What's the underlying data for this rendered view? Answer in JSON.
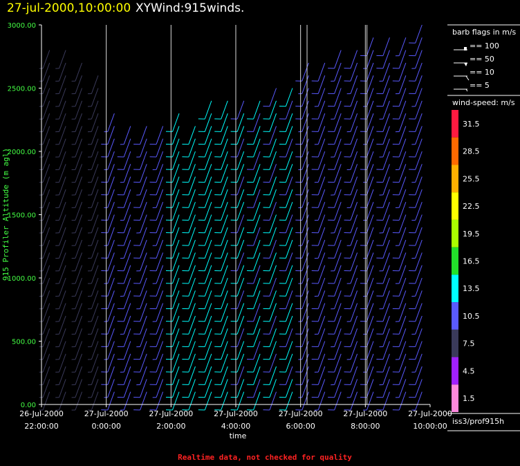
{
  "header": {
    "date_time": "27-jul-2000,10:00:00",
    "product": "XYWind:915winds."
  },
  "footer_note": "Realtime data, not checked for quality",
  "station_label": "iss3/prof915h",
  "colors": {
    "y_axis": "#44ff44",
    "footer": "#ff2222",
    "title_date": "#ffff00"
  },
  "barb_legend": {
    "title": "barb flags in m/s",
    "entries": [
      "== 100",
      "== 50",
      "== 10",
      "== 5"
    ]
  },
  "speed_legend": {
    "title": "wind-speed: m/s",
    "bins": [
      {
        "label": "31.5",
        "color": "#ff1a40"
      },
      {
        "label": "28.5",
        "color": "#ff6a00"
      },
      {
        "label": "25.5",
        "color": "#ffb000"
      },
      {
        "label": "22.5",
        "color": "#ffff00"
      },
      {
        "label": "19.5",
        "color": "#aaff00"
      },
      {
        "label": "16.5",
        "color": "#22e02a"
      },
      {
        "label": "13.5",
        "color": "#00ffff"
      },
      {
        "label": "10.5",
        "color": "#5a5aff"
      },
      {
        "label": "7.5",
        "color": "#3a3a5a"
      },
      {
        "label": "4.5",
        "color": "#a020ff"
      },
      {
        "label": "1.5",
        "color": "#ff88dd"
      }
    ]
  },
  "chart_data": {
    "type": "wind-barb time-height",
    "xlabel": "time",
    "ylabel": "915 Profiler Altitude (m agl)",
    "ylim": [
      0,
      3000
    ],
    "yticks": [
      "0.00",
      "500.00",
      "1000.00",
      "1500.00",
      "2000.00",
      "2500.00",
      "3000.00"
    ],
    "xticks": [
      {
        "date": "26-Jul-2000",
        "time": "22:00:00"
      },
      {
        "date": "27-Jul-2000",
        "time": "0:00:00"
      },
      {
        "date": "27-Jul-2000",
        "time": "2:00:00"
      },
      {
        "date": "27-Jul-2000",
        "time": "4:00:00"
      },
      {
        "date": "27-Jul-2000",
        "time": "6:00:00"
      },
      {
        "date": "27-Jul-2000",
        "time": "8:00:00"
      },
      {
        "date": "27-Jul-2000",
        "time": "10:00:00"
      }
    ],
    "x_range_hours": [
      -2,
      10
    ],
    "grid_lines_hours": [
      0,
      2,
      4,
      6,
      8
    ],
    "profile_boundaries_hours": [
      0,
      2,
      4,
      6,
      6.2,
      8,
      8.05
    ],
    "profile_interval_min": 30,
    "profile_x_hours": [
      -1.75,
      -1.25,
      -0.75,
      -0.25,
      0.25,
      0.75,
      1.25,
      1.75,
      2.25,
      2.75,
      3.25,
      3.75,
      4.25,
      4.75,
      5.25,
      5.75,
      6.25,
      6.75,
      7.25,
      7.75,
      8.25,
      8.75,
      9.25,
      9.75
    ],
    "profile_top_m": [
      2800,
      2800,
      2750,
      2650,
      2300,
      2250,
      2250,
      2200,
      2300,
      2250,
      2400,
      2450,
      2400,
      2450,
      2500,
      2550,
      2700,
      2750,
      2800,
      2850,
      2950,
      2950,
      2950,
      3000
    ],
    "range_gate_m": 100,
    "barb_direction_deg_approx": 200,
    "speed_bin_by_period": [
      {
        "hours": [
          -2,
          0
        ],
        "speed_ms_approx": 7.5
      },
      {
        "hours": [
          0,
          2
        ],
        "speed_ms_approx": 10.5
      },
      {
        "hours": [
          2,
          4
        ],
        "speed_ms_approx": 13.5
      },
      {
        "hours": [
          4,
          6
        ],
        "speed_ms_approx": 12
      },
      {
        "hours": [
          6,
          10
        ],
        "speed_ms_approx": 10.5
      }
    ],
    "grid": true
  }
}
